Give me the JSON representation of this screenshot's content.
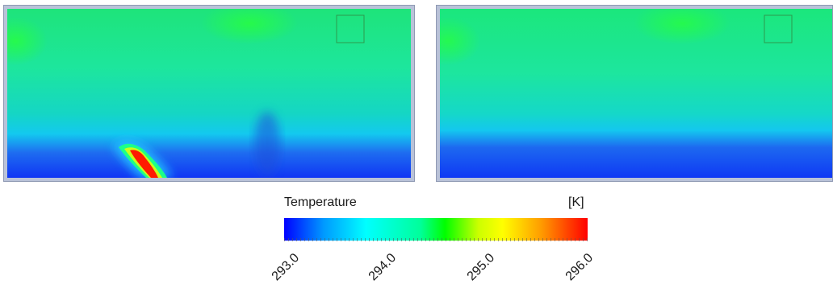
{
  "legend": {
    "title": "Temperature",
    "unit": "[K]",
    "ticks": [
      "293.0",
      "294.0",
      "295.0",
      "296.0"
    ],
    "colors": [
      "#0000ff",
      "#0099ff",
      "#00ffff",
      "#00ff99",
      "#00ff00",
      "#ccff00",
      "#ffff00",
      "#ff9900",
      "#ff0000"
    ]
  },
  "panels": [
    {
      "name": "left-contour-plot",
      "has_plume": true
    },
    {
      "name": "right-contour-plot",
      "has_plume": false
    }
  ]
}
